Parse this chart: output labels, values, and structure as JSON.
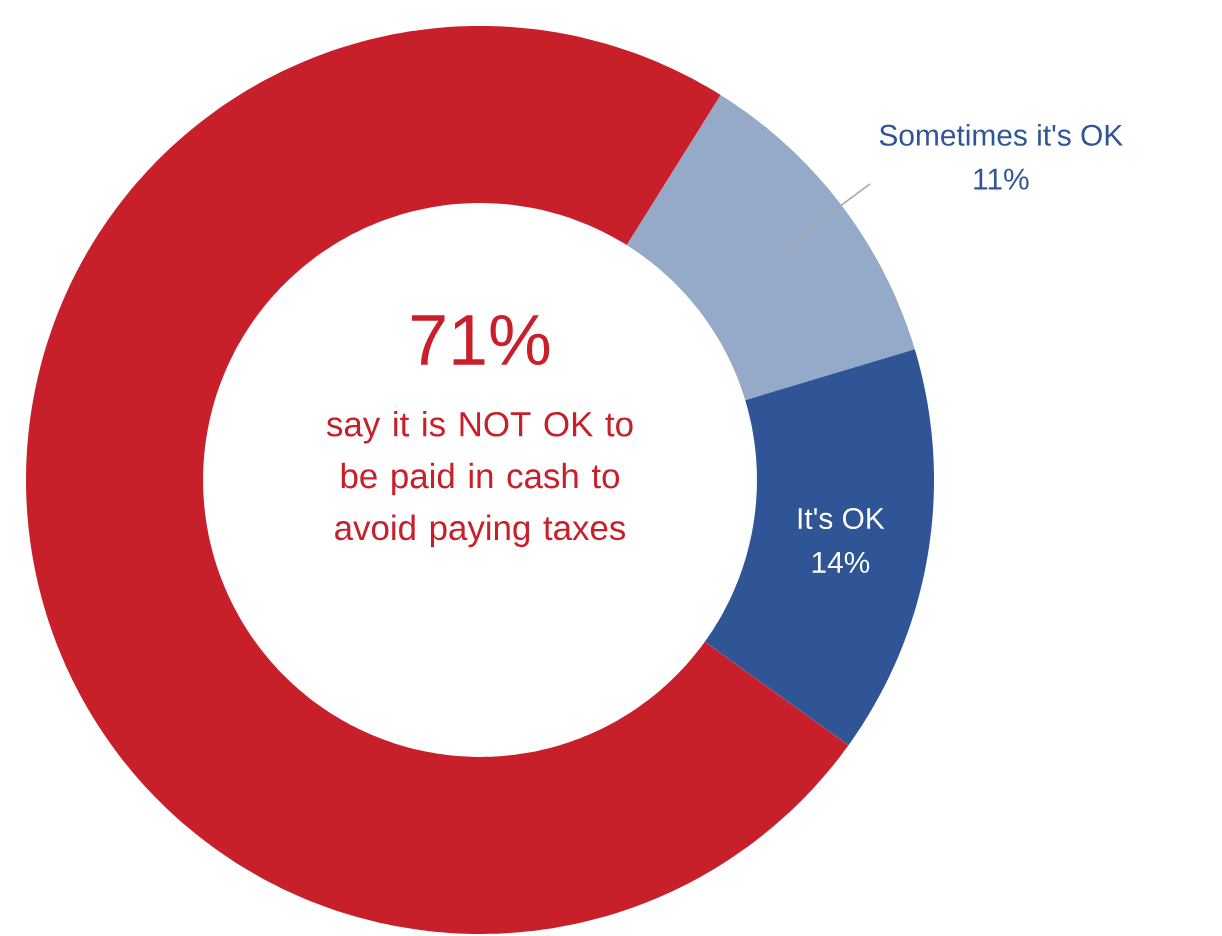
{
  "chart_data": {
    "type": "donut",
    "categories": [
      "Sometimes it's OK",
      "It's OK",
      "say it is NOT OK to be paid in cash to avoid paying taxes"
    ],
    "values": [
      11,
      14,
      71
    ],
    "colors": [
      "#95a9c9",
      "#2f5597",
      "#c8202a"
    ],
    "value_labels": [
      "11%",
      "14%",
      "71%"
    ]
  }
}
